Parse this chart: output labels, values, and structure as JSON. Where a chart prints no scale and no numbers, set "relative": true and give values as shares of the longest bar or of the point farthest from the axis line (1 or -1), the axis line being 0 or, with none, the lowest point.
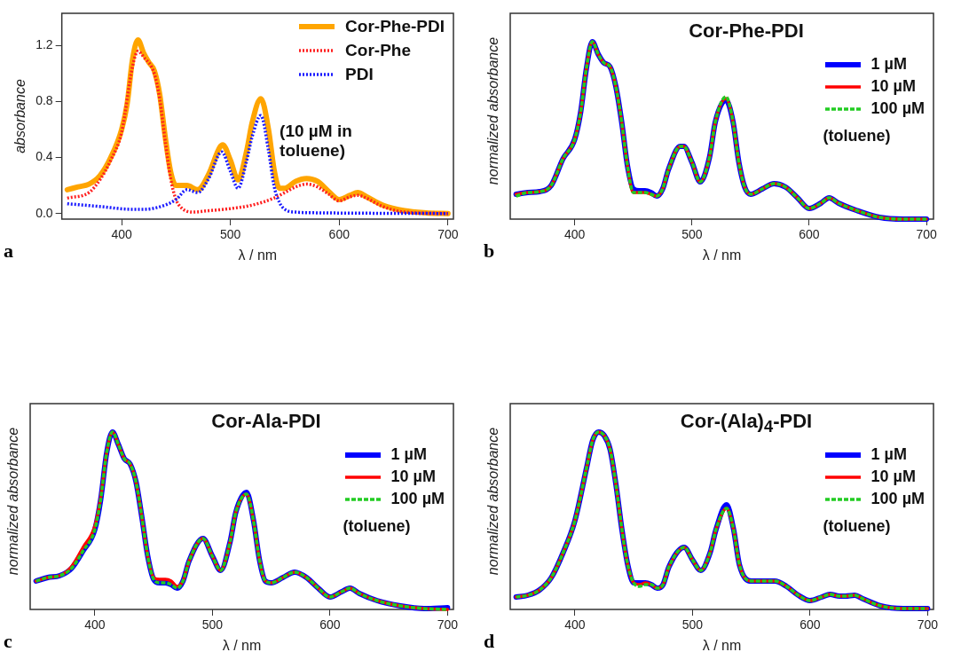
{
  "chart_data": [
    {
      "type": "line",
      "xlabel": "λ / nm",
      "ylabel": "absorbance",
      "xlim": [
        345,
        705
      ],
      "xticks": [
        400,
        500,
        600,
        700
      ],
      "ylim": [
        -0.04,
        1.43
      ],
      "yticks": [
        {
          "value": 0,
          "label": "0.0"
        },
        {
          "value": 0.4,
          "label": "0.4"
        },
        {
          "value": 0.8,
          "label": "0.8"
        },
        {
          "value": 1.2,
          "label": "1.2"
        }
      ],
      "legend": "top right",
      "annotations": [
        "(10 µM in toluene)",
        "a"
      ],
      "series": [
        {
          "name": "Cor-Phe-PDI",
          "color": "#ffa500",
          "line_style": "solid",
          "x": [
            350,
            360,
            370,
            380,
            390,
            400,
            405,
            410,
            415,
            420,
            425,
            430,
            435,
            440,
            445,
            450,
            460,
            470,
            480,
            490,
            493,
            500,
            507,
            515,
            520,
            528,
            535,
            540,
            545,
            550,
            560,
            570,
            580,
            590,
            600,
            610,
            617,
            625,
            640,
            660,
            680,
            700
          ],
          "values": [
            0.17,
            0.19,
            0.21,
            0.27,
            0.4,
            0.6,
            0.78,
            1.1,
            1.24,
            1.15,
            1.08,
            1.02,
            0.85,
            0.55,
            0.3,
            0.2,
            0.2,
            0.17,
            0.28,
            0.47,
            0.49,
            0.38,
            0.24,
            0.45,
            0.65,
            0.82,
            0.6,
            0.32,
            0.18,
            0.18,
            0.23,
            0.25,
            0.23,
            0.16,
            0.1,
            0.13,
            0.15,
            0.12,
            0.06,
            0.02,
            0.005,
            0
          ]
        },
        {
          "name": "Cor-Phe",
          "color": "#ff2020",
          "line_style": "dotted",
          "x": [
            350,
            370,
            380,
            390,
            400,
            410,
            415,
            420,
            430,
            435,
            440,
            445,
            450,
            455,
            465,
            480,
            500,
            520,
            540,
            550,
            560,
            570,
            580,
            590,
            600,
            610,
            617,
            625,
            640,
            660,
            700
          ],
          "values": [
            0.11,
            0.15,
            0.24,
            0.38,
            0.58,
            1.05,
            1.16,
            1.12,
            1.0,
            0.82,
            0.52,
            0.25,
            0.1,
            0.04,
            0.01,
            0.02,
            0.035,
            0.06,
            0.11,
            0.15,
            0.19,
            0.21,
            0.19,
            0.14,
            0.09,
            0.12,
            0.13,
            0.11,
            0.05,
            0.01,
            0
          ]
        },
        {
          "name": "PDI",
          "color": "#1a1aff",
          "line_style": "dotted",
          "x": [
            350,
            380,
            410,
            420,
            440,
            450,
            460,
            470,
            480,
            492,
            500,
            507,
            515,
            520,
            528,
            535,
            540,
            545,
            550,
            560,
            580,
            700
          ],
          "values": [
            0.07,
            0.05,
            0.03,
            0.03,
            0.06,
            0.1,
            0.17,
            0.15,
            0.25,
            0.44,
            0.3,
            0.18,
            0.38,
            0.55,
            0.7,
            0.45,
            0.2,
            0.08,
            0.03,
            0.01,
            0.005,
            0
          ]
        }
      ]
    },
    {
      "type": "line",
      "title": "Cor-Phe-PDI",
      "xlabel": "λ / nm",
      "ylabel": "normalized absorbance",
      "xlim": [
        345,
        706
      ],
      "xticks": [
        400,
        500,
        600,
        700
      ],
      "relative": true,
      "legend": "top right",
      "annotations": [
        "(toluene)",
        "b"
      ],
      "x": [
        350,
        360,
        370,
        380,
        390,
        400,
        405,
        410,
        415,
        420,
        425,
        430,
        435,
        440,
        445,
        450,
        455,
        460,
        465,
        470,
        475,
        480,
        490,
        493,
        500,
        507,
        515,
        520,
        529,
        535,
        540,
        545,
        550,
        560,
        570,
        580,
        590,
        600,
        610,
        617,
        625,
        640,
        660,
        680,
        700
      ],
      "series": [
        {
          "name": "1 µM",
          "color": "#0000ff",
          "line_style": "solid",
          "values": [
            0.14,
            0.15,
            0.155,
            0.19,
            0.34,
            0.45,
            0.6,
            0.85,
            1.0,
            0.93,
            0.88,
            0.86,
            0.75,
            0.55,
            0.3,
            0.17,
            0.16,
            0.16,
            0.15,
            0.13,
            0.17,
            0.28,
            0.41,
            0.41,
            0.32,
            0.21,
            0.35,
            0.55,
            0.67,
            0.55,
            0.32,
            0.18,
            0.14,
            0.17,
            0.2,
            0.18,
            0.12,
            0.06,
            0.09,
            0.12,
            0.09,
            0.05,
            0.01,
            0.0,
            0.0
          ]
        },
        {
          "name": "10 µM",
          "color": "#ff0000",
          "line_style": "solid",
          "values": [
            0.14,
            0.15,
            0.155,
            0.19,
            0.34,
            0.45,
            0.6,
            0.85,
            1.0,
            0.93,
            0.88,
            0.86,
            0.75,
            0.55,
            0.3,
            0.15,
            0.15,
            0.15,
            0.14,
            0.13,
            0.17,
            0.28,
            0.41,
            0.41,
            0.32,
            0.21,
            0.35,
            0.55,
            0.68,
            0.55,
            0.32,
            0.18,
            0.14,
            0.17,
            0.2,
            0.18,
            0.12,
            0.06,
            0.09,
            0.12,
            0.09,
            0.05,
            0.01,
            0.0,
            0.0
          ]
        },
        {
          "name": "100 µM",
          "color": "#22cc22",
          "line_style": "dashed",
          "values": [
            0.13,
            0.15,
            0.155,
            0.19,
            0.34,
            0.45,
            0.6,
            0.85,
            1.0,
            0.93,
            0.88,
            0.86,
            0.75,
            0.55,
            0.3,
            0.15,
            0.15,
            0.15,
            0.14,
            0.13,
            0.17,
            0.28,
            0.41,
            0.41,
            0.32,
            0.21,
            0.35,
            0.55,
            0.69,
            0.55,
            0.32,
            0.18,
            0.14,
            0.17,
            0.2,
            0.18,
            0.12,
            0.06,
            0.09,
            0.12,
            0.09,
            0.05,
            0.01,
            0.0,
            0.0
          ]
        }
      ]
    },
    {
      "type": "line",
      "title": "Cor-Ala-PDI",
      "xlabel": "λ / nm",
      "ylabel": "normalized absorbance",
      "xlim": [
        345,
        705
      ],
      "xticks": [
        400,
        500,
        600,
        700
      ],
      "relative": true,
      "legend": "top right",
      "annotations": [
        "(toluene)",
        "c"
      ],
      "x": [
        350,
        360,
        370,
        380,
        390,
        400,
        405,
        410,
        415,
        420,
        425,
        430,
        435,
        440,
        445,
        450,
        455,
        460,
        465,
        470,
        475,
        480,
        492,
        500,
        507,
        515,
        520,
        529,
        535,
        540,
        545,
        550,
        560,
        570,
        580,
        590,
        600,
        610,
        617,
        625,
        640,
        660,
        680,
        700
      ],
      "series": [
        {
          "name": "1 µM",
          "color": "#0000ff",
          "line_style": "solid",
          "values": [
            0.16,
            0.18,
            0.19,
            0.23,
            0.33,
            0.45,
            0.62,
            0.88,
            1.0,
            0.93,
            0.85,
            0.82,
            0.72,
            0.52,
            0.3,
            0.17,
            0.15,
            0.15,
            0.14,
            0.12,
            0.16,
            0.27,
            0.4,
            0.3,
            0.22,
            0.38,
            0.55,
            0.66,
            0.5,
            0.28,
            0.16,
            0.15,
            0.18,
            0.21,
            0.18,
            0.12,
            0.07,
            0.1,
            0.12,
            0.09,
            0.05,
            0.02,
            0.005,
            0.01
          ]
        },
        {
          "name": "10 µM",
          "color": "#ff0000",
          "line_style": "solid",
          "values": [
            0.16,
            0.18,
            0.19,
            0.24,
            0.35,
            0.47,
            0.63,
            0.88,
            1.0,
            0.93,
            0.85,
            0.82,
            0.72,
            0.52,
            0.3,
            0.18,
            0.17,
            0.17,
            0.16,
            0.13,
            0.16,
            0.27,
            0.4,
            0.3,
            0.22,
            0.38,
            0.55,
            0.65,
            0.5,
            0.28,
            0.16,
            0.15,
            0.18,
            0.21,
            0.18,
            0.12,
            0.07,
            0.1,
            0.12,
            0.09,
            0.05,
            0.02,
            0.005,
            0.0
          ]
        },
        {
          "name": "100 µM",
          "color": "#22cc22",
          "line_style": "dashed",
          "values": [
            0.16,
            0.18,
            0.19,
            0.23,
            0.33,
            0.45,
            0.62,
            0.88,
            1.0,
            0.93,
            0.85,
            0.82,
            0.72,
            0.52,
            0.3,
            0.17,
            0.15,
            0.15,
            0.14,
            0.12,
            0.16,
            0.27,
            0.4,
            0.3,
            0.22,
            0.38,
            0.55,
            0.65,
            0.5,
            0.28,
            0.16,
            0.15,
            0.18,
            0.21,
            0.18,
            0.12,
            0.07,
            0.1,
            0.12,
            0.09,
            0.05,
            0.02,
            0.005,
            0.0
          ]
        }
      ]
    },
    {
      "type": "line",
      "title": "Cor-(Ala)$_{4}$-PDI",
      "xlabel": "λ / nm",
      "ylabel": "normalized absorbance",
      "xlim": [
        345,
        705
      ],
      "xticks": [
        400,
        500,
        600,
        700
      ],
      "relative": true,
      "legend": "top right",
      "annotations": [
        "(toluene)",
        "d"
      ],
      "x": [
        350,
        360,
        370,
        380,
        390,
        400,
        410,
        415,
        420,
        425,
        430,
        435,
        440,
        445,
        450,
        455,
        460,
        465,
        470,
        475,
        480,
        493,
        500,
        507,
        515,
        520,
        529,
        535,
        540,
        550,
        560,
        570,
        580,
        590,
        600,
        610,
        617,
        625,
        630,
        638,
        645,
        660,
        680,
        700
      ],
      "series": [
        {
          "name": "1 µM",
          "color": "#0000ff",
          "line_style": "solid",
          "values": [
            0.07,
            0.08,
            0.11,
            0.18,
            0.32,
            0.5,
            0.8,
            0.95,
            1.0,
            0.98,
            0.9,
            0.7,
            0.45,
            0.25,
            0.15,
            0.15,
            0.15,
            0.14,
            0.12,
            0.14,
            0.24,
            0.35,
            0.28,
            0.22,
            0.32,
            0.45,
            0.59,
            0.45,
            0.25,
            0.16,
            0.16,
            0.16,
            0.13,
            0.08,
            0.05,
            0.07,
            0.085,
            0.075,
            0.075,
            0.08,
            0.06,
            0.02,
            0.005,
            0.005
          ]
        },
        {
          "name": "10 µM",
          "color": "#ff0000",
          "line_style": "solid",
          "values": [
            0.07,
            0.08,
            0.11,
            0.18,
            0.32,
            0.5,
            0.8,
            0.95,
            1.0,
            0.98,
            0.9,
            0.7,
            0.45,
            0.25,
            0.15,
            0.14,
            0.15,
            0.14,
            0.12,
            0.14,
            0.24,
            0.35,
            0.28,
            0.22,
            0.32,
            0.45,
            0.57,
            0.45,
            0.25,
            0.16,
            0.16,
            0.16,
            0.13,
            0.08,
            0.05,
            0.07,
            0.085,
            0.075,
            0.075,
            0.08,
            0.06,
            0.02,
            0.005,
            0.005
          ]
        },
        {
          "name": "100 µM",
          "color": "#22cc22",
          "line_style": "dashed",
          "values": [
            0.07,
            0.08,
            0.11,
            0.18,
            0.32,
            0.5,
            0.8,
            0.95,
            1.0,
            0.98,
            0.9,
            0.7,
            0.45,
            0.25,
            0.15,
            0.13,
            0.14,
            0.14,
            0.12,
            0.14,
            0.24,
            0.35,
            0.28,
            0.22,
            0.32,
            0.45,
            0.57,
            0.45,
            0.25,
            0.16,
            0.16,
            0.16,
            0.13,
            0.08,
            0.05,
            0.07,
            0.085,
            0.075,
            0.075,
            0.08,
            0.06,
            0.02,
            0.005,
            0.005
          ]
        }
      ]
    }
  ]
}
